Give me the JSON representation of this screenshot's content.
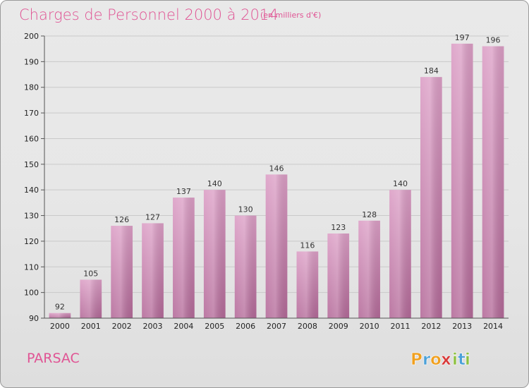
{
  "chart_data": {
    "type": "bar",
    "title": "Charges de Personnel 2000 à 2014",
    "unit_note": "(en milliers d'€)",
    "categories": [
      "2000",
      "2001",
      "2002",
      "2003",
      "2004",
      "2005",
      "2006",
      "2007",
      "2008",
      "2009",
      "2010",
      "2011",
      "2012",
      "2013",
      "2014"
    ],
    "values": [
      92,
      105,
      126,
      127,
      137,
      140,
      130,
      146,
      116,
      123,
      128,
      140,
      184,
      197,
      196
    ],
    "ylim": [
      90,
      200
    ],
    "yticks": [
      90,
      100,
      110,
      120,
      130,
      140,
      150,
      160,
      170,
      180,
      190,
      200
    ],
    "grid": true,
    "bar_color": "#dc9fc6",
    "bar_color_dark": "#b46a99"
  },
  "commune": "PARSAC",
  "logo": {
    "letters": [
      "P",
      "r",
      "o",
      "x",
      "i",
      "t",
      "i"
    ],
    "colors": [
      "#f0a020",
      "#4aa0d8",
      "#f0a020",
      "#d83a3a",
      "#8cc040",
      "#4aa0d8",
      "#8cc040"
    ]
  }
}
